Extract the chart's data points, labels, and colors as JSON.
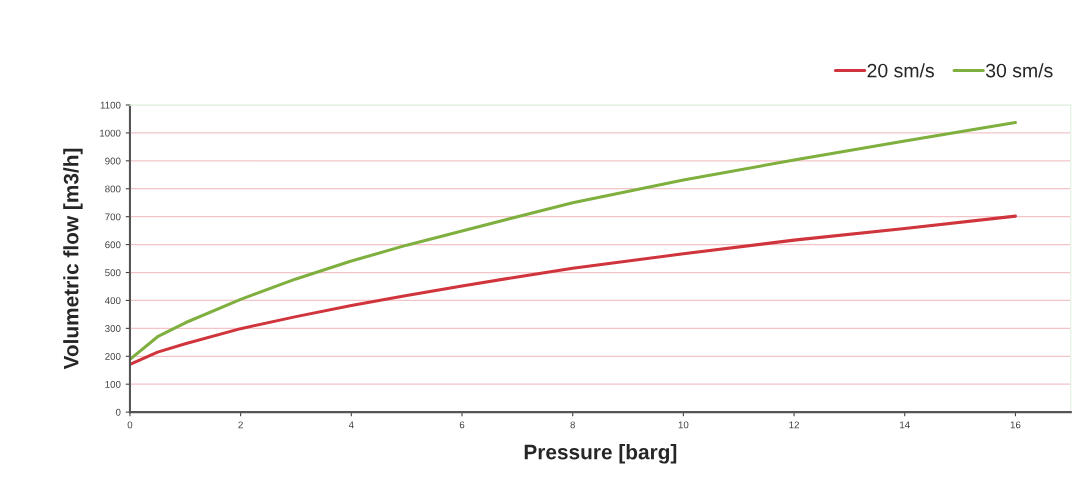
{
  "chart_data": {
    "type": "line",
    "xlabel": "Pressure [barg]",
    "ylabel": "Volumetric flow [m3/h]",
    "x": [
      0,
      0.5,
      1,
      2,
      3,
      4,
      5,
      6,
      7,
      8,
      10,
      12,
      14,
      16
    ],
    "series": [
      {
        "name": "20 sm/s",
        "color": "#d0343c",
        "values": [
          171,
          215,
          245,
          299,
          342,
          382,
          418,
          452,
          484,
          515,
          567,
          616,
          658,
          702
        ]
      },
      {
        "name": "30 sm/s",
        "color": "#7fb03f",
        "values": [
          189,
          270,
          320,
          404,
          477,
          541,
          598,
          649,
          700,
          750,
          831,
          903,
          971,
          1037
        ]
      }
    ],
    "xlim": [
      0,
      17
    ],
    "xticks": [
      0,
      2,
      4,
      6,
      8,
      10,
      12,
      14,
      16
    ],
    "ylim": [
      0,
      1100
    ],
    "yticks": [
      0,
      100,
      200,
      300,
      400,
      500,
      600,
      700,
      800,
      900,
      1000,
      1100
    ],
    "grid": "y",
    "legend": "top right",
    "marker": "none",
    "line_style": "solid"
  }
}
